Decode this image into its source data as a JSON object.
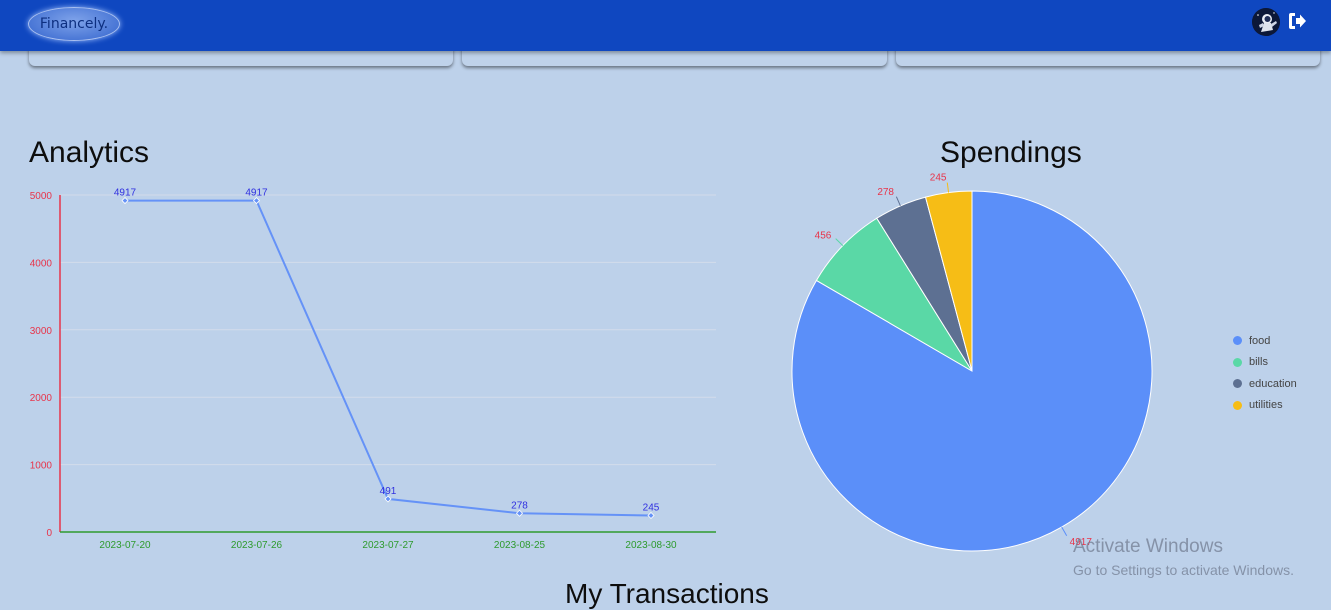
{
  "header": {
    "logo_text": "Financely.",
    "avatar": "astronaut-avatar",
    "logout_icon": "sign-out-icon",
    "brand_color": "#0f47c0"
  },
  "sections": {
    "analytics_title": "Analytics",
    "spendings_title": "Spendings",
    "transactions_title": "My Transactions"
  },
  "chart_data": [
    {
      "type": "line",
      "title": "Analytics",
      "x": [
        "2023-07-20",
        "2023-07-26",
        "2023-07-27",
        "2023-08-25",
        "2023-08-30"
      ],
      "values": [
        4917,
        4917,
        491,
        278,
        245
      ],
      "data_labels": [
        "4917",
        "4917",
        "491",
        "278",
        "245"
      ],
      "yticks": [
        "0",
        "1000",
        "2000",
        "3000",
        "4000",
        "5000"
      ],
      "ylim": [
        0,
        5000
      ],
      "grid": true,
      "line_color": "#6592f7",
      "label_color": "#3030e0",
      "yaxis_color": "#e8344a",
      "xaxis_color": "#2e9b2e"
    },
    {
      "type": "pie",
      "title": "Spendings",
      "categories": [
        "food",
        "bills",
        "education",
        "utilities"
      ],
      "values": [
        4917,
        456,
        278,
        245
      ],
      "data_labels": [
        "4917",
        "456",
        "278",
        "245"
      ],
      "colors": [
        "#5b8ff9",
        "#5ad8a6",
        "#5d7092",
        "#f6bd16"
      ],
      "legend_position": "right",
      "label_color": "#e8344a"
    }
  ],
  "watermark": {
    "line1": "Activate Windows",
    "line2": "Go to Settings to activate Windows."
  }
}
